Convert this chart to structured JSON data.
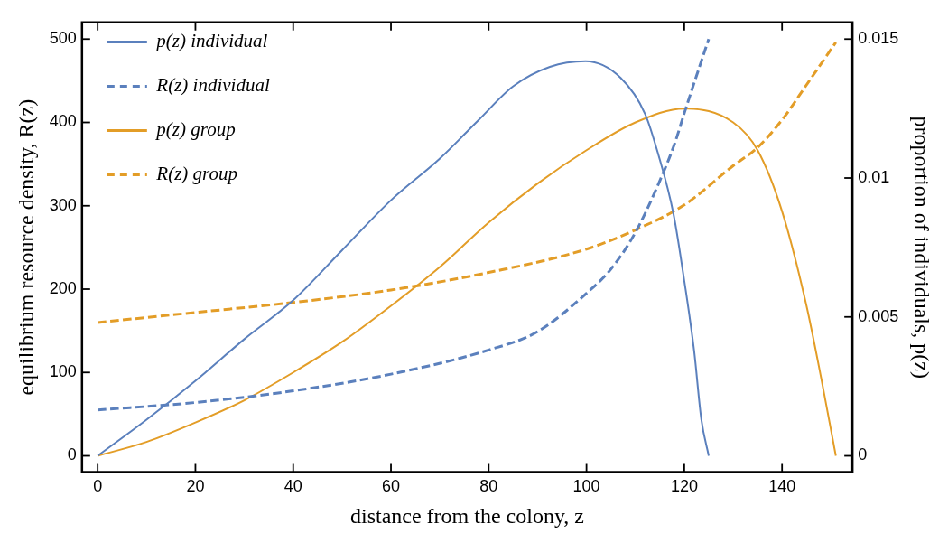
{
  "chart_data": {
    "type": "line",
    "xlabel": "distance from the colony, z",
    "ylabel": "equilibrium resource density, R(z)",
    "y2label": "proportion of individuals, p(z)",
    "xlim": [
      -3.2,
      154.4
    ],
    "xticks": [
      0,
      20,
      40,
      60,
      80,
      100,
      120,
      140
    ],
    "ylim": [
      -19.6,
      520
    ],
    "yticks": [
      0,
      100,
      200,
      300,
      400,
      500
    ],
    "y2lim": [
      -0.000588,
      0.0156
    ],
    "y2ticks": [
      0,
      0.005,
      0.01,
      0.015
    ],
    "grid": false,
    "legend": "top left",
    "marker": "none",
    "series": [
      {
        "name": "p(z) individual",
        "color": "#5b80bd",
        "axis": "y2",
        "line_style": "solid",
        "x": [
          0,
          10,
          20,
          30,
          40,
          50,
          60,
          70,
          78,
          85,
          92.5,
          99.8,
          107,
          112,
          114.6,
          117.8,
          120,
          122,
          123.5,
          125
        ],
        "values": [
          0,
          0.0013,
          0.0027,
          0.0042,
          0.0056,
          0.0074,
          0.0092,
          0.0107,
          0.0121,
          0.0133,
          0.014,
          0.0142,
          0.0136,
          0.0123,
          0.0109,
          0.0087,
          0.0063,
          0.0038,
          0.0013,
          0
        ]
      },
      {
        "name": "R(z) individual",
        "color": "#5b80bd",
        "axis": "y",
        "line_style": "dashed",
        "x": [
          0,
          20,
          40,
          60,
          80,
          90,
          100,
          105,
          110,
          115,
          118,
          120,
          122,
          125
        ],
        "values": [
          55,
          64,
          78,
          98,
          127,
          149,
          195,
          224,
          268,
          330,
          374,
          411,
          447,
          500
        ]
      },
      {
        "name": "p(z) group",
        "color": "#e39d27",
        "axis": "y2",
        "line_style": "solid",
        "x": [
          0,
          10,
          20,
          30,
          40,
          50,
          60,
          70,
          80,
          90,
          100,
          110,
          120,
          130,
          135,
          140,
          145,
          148,
          151
        ],
        "values": [
          0,
          0.0005,
          0.0012,
          0.002,
          0.003,
          0.0041,
          0.0054,
          0.0068,
          0.0084,
          0.0098,
          0.011,
          0.012,
          0.0125,
          0.012,
          0.011,
          0.0088,
          0.0054,
          0.0028,
          0
        ]
      },
      {
        "name": "R(z) group",
        "color": "#e39d27",
        "axis": "y",
        "line_style": "dashed",
        "x": [
          0,
          20,
          40,
          60,
          80,
          100,
          110,
          120,
          130,
          135,
          140,
          145,
          151
        ],
        "values": [
          160,
          172,
          184,
          199,
          220,
          248,
          271,
          301,
          348,
          370,
          403,
          445,
          496
        ]
      }
    ]
  }
}
